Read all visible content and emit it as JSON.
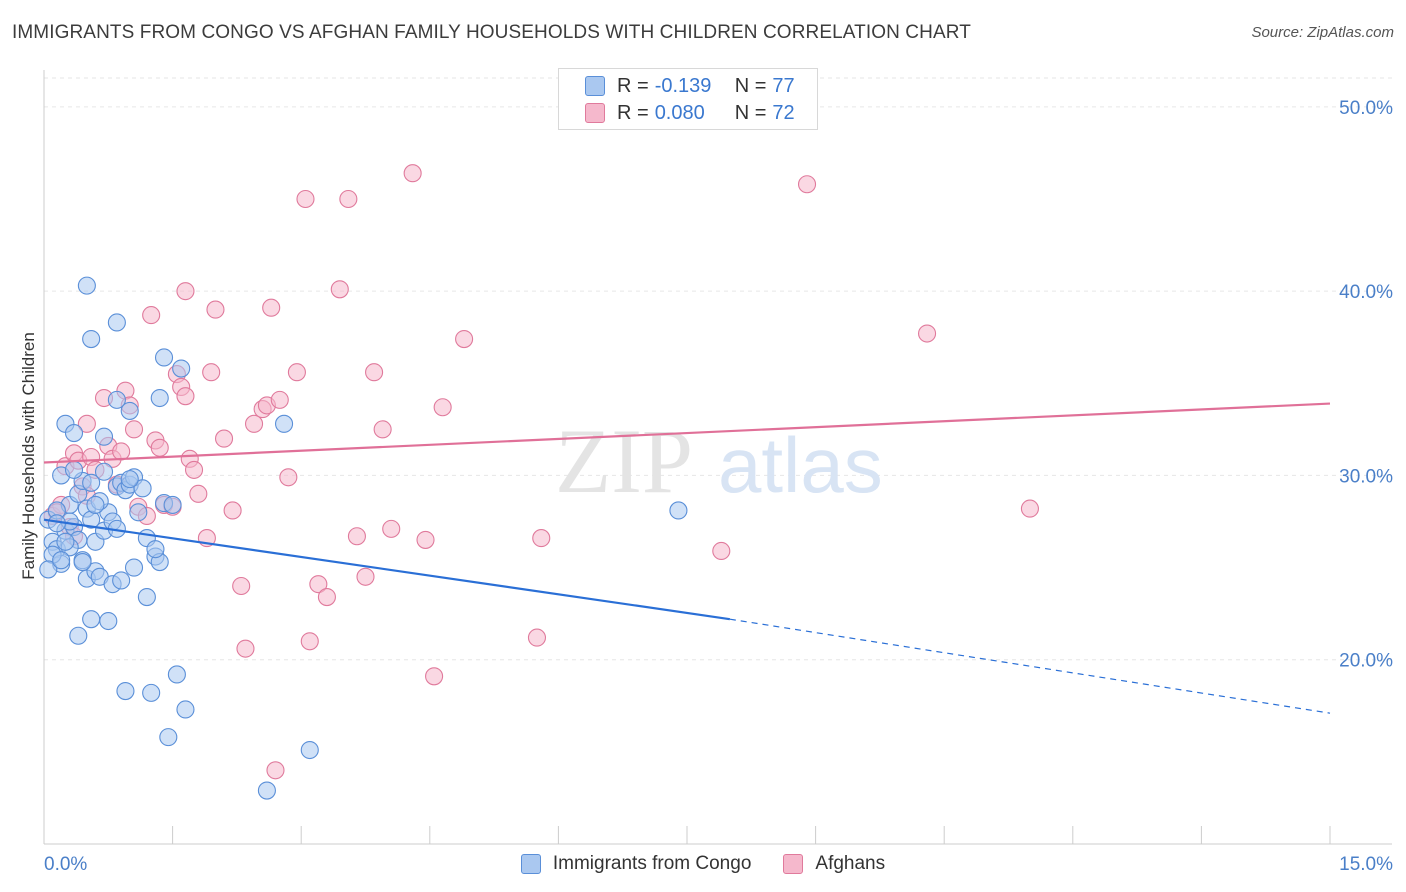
{
  "title": "IMMIGRANTS FROM CONGO VS AFGHAN FAMILY HOUSEHOLDS WITH CHILDREN CORRELATION CHART",
  "source": "Source: ZipAtlas.com",
  "watermark": {
    "zip": "ZIP",
    "atlas": "atlas"
  },
  "legend": {
    "congo": {
      "r_label": "R =",
      "r": "-0.139",
      "n_label": "N =",
      "n": "77"
    },
    "afghan": {
      "r_label": "R =",
      "r": "0.080",
      "n_label": "N =",
      "n": "72"
    }
  },
  "colors": {
    "congo_fill": "#aac8f0",
    "congo_stroke": "#5a8fd8",
    "congo_line": "#2a6fd6",
    "afghan_fill": "#f5b8cc",
    "afghan_stroke": "#e07a9c",
    "afghan_line": "#e07098",
    "axis_text": "#4a7fc8",
    "grid": "#e6e6e6"
  },
  "chart_data": {
    "type": "scatter",
    "title": "IMMIGRANTS FROM CONGO VS AFGHAN FAMILY HOUSEHOLDS WITH CHILDREN CORRELATION CHART",
    "xlabel": "",
    "ylabel": "Family Households with Children",
    "xlim": [
      0,
      15
    ],
    "ylim": [
      10,
      52
    ],
    "x_tick_labels": [
      "0.0%",
      "15.0%"
    ],
    "y_ticks": [
      20,
      30,
      40,
      50
    ],
    "y_tick_labels": [
      "20.0%",
      "30.0%",
      "40.0%",
      "50.0%"
    ],
    "grid": true,
    "legend_placement": "bottom",
    "series": [
      {
        "name": "Immigrants from Congo",
        "points": [
          [
            0.05,
            27.6
          ],
          [
            0.1,
            26.4
          ],
          [
            0.15,
            26.0
          ],
          [
            0.2,
            25.2
          ],
          [
            0.25,
            27.0
          ],
          [
            0.2,
            30.0
          ],
          [
            0.25,
            32.8
          ],
          [
            0.35,
            32.3
          ],
          [
            0.3,
            28.4
          ],
          [
            0.35,
            27.2
          ],
          [
            0.4,
            26.5
          ],
          [
            0.45,
            25.4
          ],
          [
            0.4,
            29.0
          ],
          [
            0.45,
            29.7
          ],
          [
            0.5,
            28.2
          ],
          [
            0.5,
            24.4
          ],
          [
            0.55,
            22.2
          ],
          [
            0.4,
            21.3
          ],
          [
            0.55,
            27.6
          ],
          [
            0.6,
            26.4
          ],
          [
            0.6,
            24.8
          ],
          [
            0.65,
            24.5
          ],
          [
            0.7,
            27.0
          ],
          [
            0.7,
            30.2
          ],
          [
            0.7,
            32.1
          ],
          [
            0.75,
            28.0
          ],
          [
            0.8,
            27.5
          ],
          [
            0.8,
            24.1
          ],
          [
            0.75,
            22.1
          ],
          [
            0.85,
            29.4
          ],
          [
            0.9,
            29.6
          ],
          [
            0.95,
            29.2
          ],
          [
            0.9,
            24.3
          ],
          [
            0.95,
            18.3
          ],
          [
            1.0,
            29.5
          ],
          [
            1.05,
            29.9
          ],
          [
            1.05,
            25.0
          ],
          [
            1.1,
            28.0
          ],
          [
            1.2,
            26.6
          ],
          [
            1.2,
            23.4
          ],
          [
            1.25,
            18.2
          ],
          [
            1.3,
            25.6
          ],
          [
            1.35,
            25.3
          ],
          [
            1.4,
            28.5
          ],
          [
            1.45,
            15.8
          ],
          [
            1.55,
            19.2
          ],
          [
            1.6,
            35.8
          ],
          [
            1.65,
            17.3
          ],
          [
            1.5,
            28.4
          ],
          [
            0.5,
            40.3
          ],
          [
            0.55,
            37.4
          ],
          [
            0.85,
            38.3
          ],
          [
            0.85,
            34.1
          ],
          [
            1.0,
            33.5
          ],
          [
            1.35,
            34.2
          ],
          [
            1.4,
            36.4
          ],
          [
            2.8,
            32.8
          ],
          [
            3.1,
            15.1
          ],
          [
            2.6,
            12.9
          ],
          [
            7.4,
            28.1
          ],
          [
            0.3,
            26.1
          ],
          [
            0.15,
            28.1
          ],
          [
            0.1,
            25.7
          ],
          [
            0.35,
            30.3
          ],
          [
            0.65,
            28.6
          ],
          [
            1.15,
            29.3
          ],
          [
            0.85,
            27.1
          ],
          [
            0.25,
            26.4
          ],
          [
            0.45,
            25.3
          ],
          [
            1.0,
            29.8
          ],
          [
            0.05,
            24.9
          ],
          [
            0.6,
            28.4
          ],
          [
            0.55,
            29.6
          ],
          [
            0.3,
            27.5
          ],
          [
            0.15,
            27.4
          ],
          [
            1.3,
            26.0
          ],
          [
            0.2,
            25.4
          ]
        ]
      },
      {
        "name": "Afghans",
        "points": [
          [
            0.1,
            27.8
          ],
          [
            0.2,
            28.4
          ],
          [
            0.25,
            30.5
          ],
          [
            0.3,
            27.2
          ],
          [
            0.35,
            31.2
          ],
          [
            0.4,
            30.8
          ],
          [
            0.45,
            29.4
          ],
          [
            0.5,
            32.8
          ],
          [
            0.55,
            31.0
          ],
          [
            0.6,
            30.3
          ],
          [
            0.7,
            34.2
          ],
          [
            0.75,
            31.6
          ],
          [
            0.8,
            30.9
          ],
          [
            0.85,
            29.5
          ],
          [
            0.9,
            31.3
          ],
          [
            0.95,
            34.6
          ],
          [
            1.0,
            33.8
          ],
          [
            1.05,
            32.5
          ],
          [
            1.1,
            28.3
          ],
          [
            1.2,
            27.8
          ],
          [
            1.25,
            38.7
          ],
          [
            1.3,
            31.9
          ],
          [
            1.35,
            31.5
          ],
          [
            1.4,
            28.4
          ],
          [
            1.55,
            35.5
          ],
          [
            1.6,
            34.8
          ],
          [
            1.65,
            34.3
          ],
          [
            1.7,
            30.9
          ],
          [
            1.75,
            30.3
          ],
          [
            1.8,
            29.0
          ],
          [
            1.9,
            26.6
          ],
          [
            1.95,
            35.6
          ],
          [
            2.0,
            39.0
          ],
          [
            2.1,
            32.0
          ],
          [
            2.2,
            28.1
          ],
          [
            2.3,
            24.0
          ],
          [
            2.35,
            20.6
          ],
          [
            2.45,
            32.8
          ],
          [
            2.55,
            33.6
          ],
          [
            2.6,
            33.8
          ],
          [
            2.65,
            39.1
          ],
          [
            2.7,
            14.0
          ],
          [
            2.75,
            34.1
          ],
          [
            2.85,
            29.9
          ],
          [
            2.95,
            35.6
          ],
          [
            3.05,
            45.0
          ],
          [
            3.1,
            21.0
          ],
          [
            3.2,
            24.1
          ],
          [
            3.3,
            23.4
          ],
          [
            3.45,
            40.1
          ],
          [
            3.55,
            45.0
          ],
          [
            3.65,
            26.7
          ],
          [
            3.75,
            24.5
          ],
          [
            3.85,
            35.6
          ],
          [
            3.95,
            32.5
          ],
          [
            4.05,
            27.1
          ],
          [
            4.3,
            46.4
          ],
          [
            4.45,
            26.5
          ],
          [
            4.55,
            19.1
          ],
          [
            4.65,
            33.7
          ],
          [
            4.9,
            37.4
          ],
          [
            5.75,
            21.2
          ],
          [
            5.8,
            26.6
          ],
          [
            7.9,
            25.9
          ],
          [
            8.9,
            45.8
          ],
          [
            10.3,
            37.7
          ],
          [
            11.5,
            28.2
          ],
          [
            1.65,
            40.0
          ],
          [
            0.15,
            28.0
          ],
          [
            0.35,
            26.7
          ],
          [
            1.5,
            28.3
          ],
          [
            0.5,
            28.9
          ]
        ]
      }
    ],
    "trend_lines": [
      {
        "series": "Immigrants from Congo",
        "x0": 0,
        "y0": 27.6,
        "x1": 8.0,
        "y1": 22.2,
        "dashed_to_x": 15,
        "dashed_to_y": 17.1
      },
      {
        "series": "Afghans",
        "x0": 0,
        "y0": 30.7,
        "x1": 15,
        "y1": 33.9
      }
    ]
  },
  "bottom_legend": [
    "Immigrants from Congo",
    "Afghans"
  ]
}
